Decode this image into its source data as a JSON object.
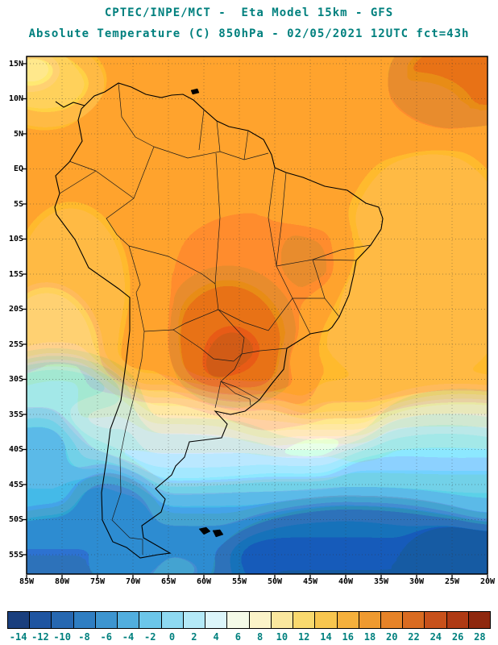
{
  "header": {
    "title_line1": "CPTEC/INPE/MCT -  Eta Model 15km - GFS",
    "title_line2": "Absolute Temperature (C) 850hPa - 02/05/2021 12UTC fct=43h",
    "title_color": "#00807E"
  },
  "meta": {
    "source": "CPTEC/INPE/MCT",
    "model": "Eta Model 15km",
    "initial_condition": "GFS",
    "variable": "Absolute Temperature (C)",
    "level": "850hPa",
    "valid": "02/05/2021 12UTC",
    "forecast_hour": "fct=43h"
  },
  "map": {
    "lat_labels": [
      "15N",
      "10N",
      "5N",
      "EQ",
      "5S",
      "10S",
      "15S",
      "20S",
      "25S",
      "30S",
      "35S",
      "40S",
      "45S",
      "50S",
      "55S"
    ],
    "lon_labels": [
      "85W",
      "80W",
      "75W",
      "70W",
      "65W",
      "60W",
      "55W",
      "50W",
      "45W",
      "40W",
      "35W",
      "30W",
      "25W",
      "20W"
    ]
  },
  "colorbar": {
    "values": [
      "-14",
      "-12",
      "-10",
      "-8",
      "-6",
      "-4",
      "-2",
      "0",
      "2",
      "4",
      "6",
      "8",
      "10",
      "12",
      "14",
      "16",
      "18",
      "20",
      "22",
      "24",
      "26",
      "28"
    ],
    "colors": [
      "#1A3F7E",
      "#1F55A1",
      "#2768B1",
      "#2F7EC2",
      "#3D95D0",
      "#52AEDE",
      "#6CC6E9",
      "#8ED9F1",
      "#B4E9F7",
      "#DCF5FA",
      "#F4FAE8",
      "#FBF3C8",
      "#FAE79E",
      "#F9D96E",
      "#F8C64F",
      "#F5B03C",
      "#EF9A30",
      "#E68328",
      "#D96B21",
      "#C8511B",
      "#AF3A14",
      "#8F280E"
    ],
    "label_color": "#00807E"
  }
}
